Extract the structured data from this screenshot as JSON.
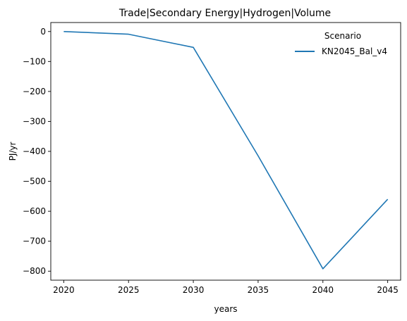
{
  "chart_data": {
    "type": "line",
    "title": "Trade|Secondary Energy|Hydrogen|Volume",
    "xlabel": "years",
    "ylabel": "PJ/yr",
    "x": [
      2020,
      2025,
      2030,
      2035,
      2040,
      2045
    ],
    "x_ticks": [
      2020,
      2025,
      2030,
      2035,
      2040,
      2045
    ],
    "y_ticks": [
      0,
      -100,
      -200,
      -300,
      -400,
      -500,
      -600,
      -700,
      -800
    ],
    "xlim": [
      2019,
      2046
    ],
    "ylim": [
      -830,
      30
    ],
    "grid": false,
    "legend": {
      "title": "Scenario",
      "placement": "top-right"
    },
    "series": [
      {
        "name": "KN2045_Bal_v4",
        "color": "#1f77b4",
        "values": [
          0,
          -9,
          -53,
          -415,
          -792,
          -560
        ]
      }
    ]
  }
}
